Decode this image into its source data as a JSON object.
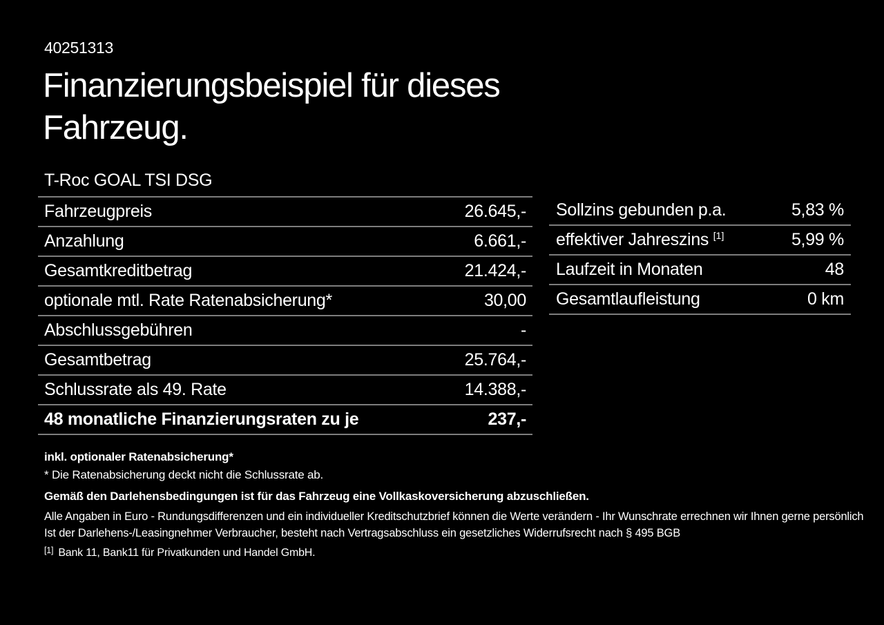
{
  "page": {
    "id_number": "40251313",
    "title_line1": "Finanzierungsbeispiel für dieses",
    "title_line2": "Fahrzeug.",
    "vehicle_model": "T-Roc GOAL TSI DSG"
  },
  "finance_table": {
    "rows": [
      {
        "label": "Fahrzeugpreis",
        "value": "26.645,-"
      },
      {
        "label": "Anzahlung",
        "value": "6.661,-"
      },
      {
        "label": "Gesamtkreditbetrag",
        "value": "21.424,-"
      },
      {
        "label": "optionale mtl. Rate Ratenabsicherung*",
        "value": "30,00"
      },
      {
        "label": "Abschlussgebühren",
        "value": "-"
      },
      {
        "label": "Gesamtbetrag",
        "value": "25.764,-"
      },
      {
        "label": "Schlussrate als 49. Rate",
        "value": "14.388,-"
      },
      {
        "label": "48 monatliche Finanzierungsraten zu je",
        "value": "237,-"
      }
    ]
  },
  "conditions_table": {
    "rows": [
      {
        "label": "Sollzins gebunden p.a.",
        "superscript": "",
        "value": "5,83 %"
      },
      {
        "label": "effektiver Jahreszins",
        "superscript": "[1]",
        "value": "5,99 %"
      },
      {
        "label": "Laufzeit in Monaten",
        "superscript": "",
        "value": "48"
      },
      {
        "label": "Gesamtlaufleistung",
        "superscript": "",
        "value": "0 km"
      }
    ]
  },
  "footnotes": {
    "rate_note_bold": "inkl. optionaler Ratenabsicherung*",
    "rate_note": "* Die Ratenabsicherung deckt nicht die Schlussrate ab.",
    "kasko_note": "Gemäß den Darlehensbedingungen ist für das Fahrzeug eine Vollkaskoversicherung abzuschließen.",
    "disclaimer_line1": "Alle Angaben in Euro - Rundungsdifferenzen und ein individueller Kreditschutzbrief können die Werte verändern - Ihr Wunschrate errechnen wir Ihnen gerne persönlich",
    "disclaimer_line2": "Ist der Darlehens-/Leasingnehmer Verbraucher, besteht nach Vertragsabschluss ein gesetzliches Widerrufsrecht nach § 495 BGB",
    "bank_ref_marker": "[1]",
    "bank_ref_text": "Bank 11, Bank11 für Privatkunden und Handel GmbH."
  },
  "colors": {
    "background": "#000000",
    "text": "#ffffff",
    "divider": "#7d7d7d"
  }
}
